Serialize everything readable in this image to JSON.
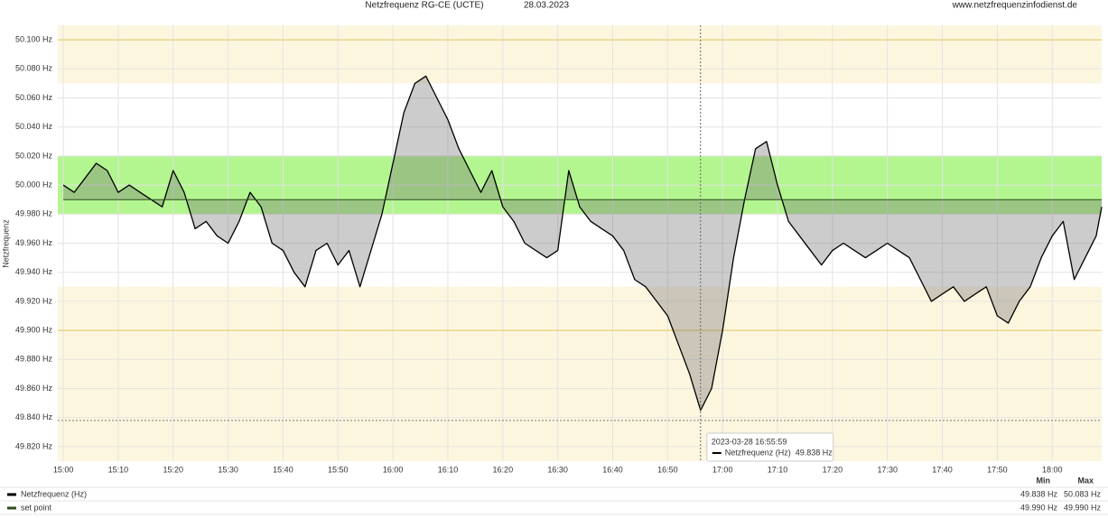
{
  "chart_data": {
    "type": "line",
    "title": "Netzfrequenz RG-CE (UCTE)",
    "date": "28.03.2023",
    "source": "www.netzfrequenzinfodienst.de",
    "y_label": "Netzfrequenz",
    "x": [
      "15:00",
      "15:02",
      "15:04",
      "15:06",
      "15:08",
      "15:10",
      "15:12",
      "15:14",
      "15:16",
      "15:18",
      "15:20",
      "15:22",
      "15:24",
      "15:26",
      "15:28",
      "15:30",
      "15:32",
      "15:34",
      "15:36",
      "15:38",
      "15:40",
      "15:42",
      "15:44",
      "15:46",
      "15:48",
      "15:50",
      "15:52",
      "15:54",
      "15:56",
      "15:58",
      "16:00",
      "16:02",
      "16:04",
      "16:06",
      "16:08",
      "16:10",
      "16:12",
      "16:14",
      "16:16",
      "16:18",
      "16:20",
      "16:22",
      "16:24",
      "16:26",
      "16:28",
      "16:30",
      "16:32",
      "16:34",
      "16:36",
      "16:38",
      "16:40",
      "16:42",
      "16:44",
      "16:46",
      "16:48",
      "16:50",
      "16:52",
      "16:54",
      "16:56",
      "16:58",
      "17:00",
      "17:02",
      "17:04",
      "17:06",
      "17:08",
      "17:10",
      "17:12",
      "17:14",
      "17:16",
      "17:18",
      "17:20",
      "17:22",
      "17:24",
      "17:26",
      "17:28",
      "17:30",
      "17:32",
      "17:34",
      "17:36",
      "17:38",
      "17:40",
      "17:42",
      "17:44",
      "17:46",
      "17:48",
      "17:50",
      "17:52",
      "17:54",
      "17:56",
      "17:58",
      "18:00",
      "18:02",
      "18:04",
      "18:06",
      "18:08",
      "18:09"
    ],
    "series": [
      {
        "name": "Netzfrequenz (Hz)",
        "color": "#000000",
        "values": [
          50.0,
          49.995,
          50.005,
          50.015,
          50.01,
          49.995,
          50.0,
          49.995,
          49.99,
          49.985,
          50.01,
          49.995,
          49.97,
          49.975,
          49.965,
          49.96,
          49.975,
          49.995,
          49.985,
          49.96,
          49.955,
          49.94,
          49.93,
          49.955,
          49.96,
          49.945,
          49.955,
          49.93,
          49.955,
          49.98,
          50.015,
          50.05,
          50.07,
          50.075,
          50.06,
          50.045,
          50.025,
          50.01,
          49.995,
          50.01,
          49.985,
          49.975,
          49.96,
          49.955,
          49.95,
          49.955,
          50.01,
          49.985,
          49.975,
          49.97,
          49.965,
          49.955,
          49.935,
          49.93,
          49.92,
          49.91,
          49.89,
          49.87,
          49.845,
          49.86,
          49.9,
          49.95,
          49.99,
          50.025,
          50.03,
          50.0,
          49.975,
          49.965,
          49.955,
          49.945,
          49.955,
          49.96,
          49.955,
          49.95,
          49.955,
          49.96,
          49.955,
          49.95,
          49.935,
          49.92,
          49.925,
          49.93,
          49.92,
          49.925,
          49.93,
          49.91,
          49.905,
          49.92,
          49.93,
          49.95,
          49.965,
          49.975,
          49.935,
          49.95,
          49.965,
          49.985
        ]
      },
      {
        "name": "set point",
        "color": "#2e4d1e",
        "values": [
          49.99,
          49.99,
          49.99,
          49.99,
          49.99,
          49.99,
          49.99,
          49.99,
          49.99,
          49.99,
          49.99,
          49.99,
          49.99,
          49.99,
          49.99,
          49.99,
          49.99,
          49.99,
          49.99,
          49.99,
          49.99,
          49.99,
          49.99,
          49.99,
          49.99,
          49.99,
          49.99,
          49.99,
          49.99,
          49.99,
          49.99,
          49.99,
          49.99,
          49.99,
          49.99,
          49.99,
          49.99,
          49.99,
          49.99,
          49.99,
          49.99,
          49.99,
          49.99,
          49.99,
          49.99,
          49.99,
          49.99,
          49.99,
          49.99,
          49.99,
          49.99,
          49.99,
          49.99,
          49.99,
          49.99,
          49.99,
          49.99,
          49.99,
          49.99,
          49.99,
          49.99,
          49.99,
          49.99,
          49.99,
          49.99,
          49.99,
          49.99,
          49.99,
          49.99,
          49.99,
          49.99,
          49.99,
          49.99,
          49.99,
          49.99,
          49.99,
          49.99,
          49.99,
          49.99,
          49.99,
          49.99,
          49.99,
          49.99,
          49.99,
          49.99,
          49.99,
          49.99,
          49.99,
          49.99,
          49.99,
          49.99,
          49.99,
          49.99,
          49.99,
          49.99,
          49.99
        ]
      }
    ],
    "xlim": [
      "14:59",
      "18:09"
    ],
    "xticks": [
      "15:00",
      "15:10",
      "15:20",
      "15:30",
      "15:40",
      "15:50",
      "16:00",
      "16:10",
      "16:20",
      "16:30",
      "16:40",
      "16:50",
      "17:00",
      "17:10",
      "17:20",
      "17:30",
      "17:40",
      "17:50",
      "18:00"
    ],
    "ylim": [
      49.81,
      50.11
    ],
    "yticks": [
      {
        "value": 49.82,
        "label": "49.820 Hz"
      },
      {
        "value": 49.84,
        "label": "49.840 Hz"
      },
      {
        "value": 49.86,
        "label": "49.860 Hz"
      },
      {
        "value": 49.88,
        "label": "49.880 Hz"
      },
      {
        "value": 49.9,
        "label": "49.900 Hz"
      },
      {
        "value": 49.92,
        "label": "49.920 Hz"
      },
      {
        "value": 49.94,
        "label": "49.940 Hz"
      },
      {
        "value": 49.96,
        "label": "49.960 Hz"
      },
      {
        "value": 49.98,
        "label": "49.980 Hz"
      },
      {
        "value": 50.0,
        "label": "50.000 Hz"
      },
      {
        "value": 50.02,
        "label": "50.020 Hz"
      },
      {
        "value": 50.04,
        "label": "50.040 Hz"
      },
      {
        "value": 50.06,
        "label": "50.060 Hz"
      },
      {
        "value": 50.08,
        "label": "50.080 Hz"
      },
      {
        "value": 50.1,
        "label": "50.100 Hz"
      }
    ],
    "grid": true,
    "bands": [
      {
        "from": 50.07,
        "to": 50.11,
        "color": "#fdf6df"
      },
      {
        "from": 49.81,
        "to": 49.93,
        "color": "#fdf6df"
      },
      {
        "from": 49.98,
        "to": 50.02,
        "color": "#b3f58f"
      }
    ],
    "threshold_lines": [
      {
        "value": 50.1,
        "color": "#e6cf78"
      },
      {
        "value": 49.9,
        "color": "#e6cf78"
      }
    ],
    "tooltip": {
      "x": "2023-03-28 16:55:59",
      "value": 49.838,
      "value_label": "49.838 Hz"
    },
    "summary": {
      "columns": [
        "Min",
        "Max"
      ],
      "rows": [
        {
          "values": [
            49.838,
            50.083
          ],
          "value_labels": [
            "49.838 Hz",
            "50.083 Hz"
          ]
        },
        {
          "values": [
            49.99,
            49.99
          ],
          "value_labels": [
            "49.990 Hz",
            "49.990 Hz"
          ]
        }
      ]
    }
  }
}
